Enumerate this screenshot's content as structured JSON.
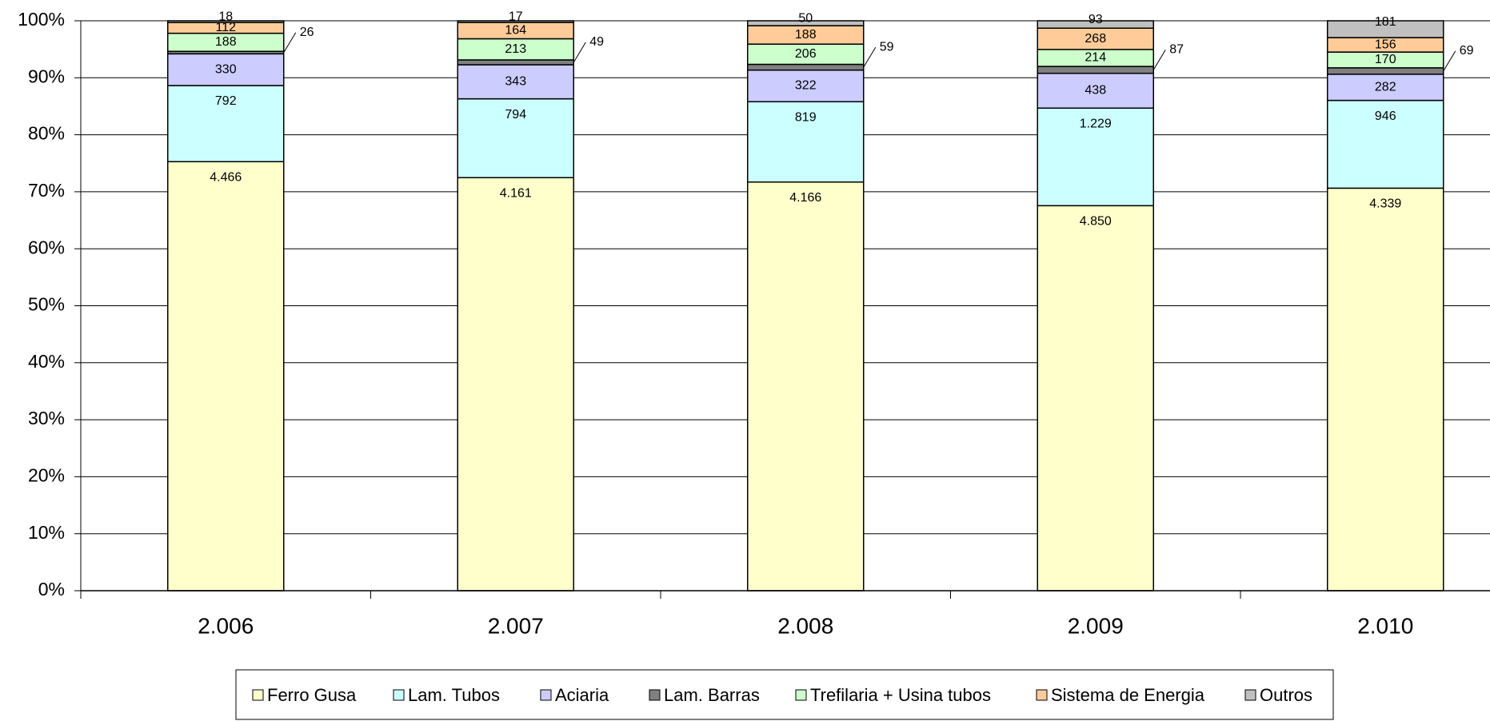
{
  "chart_data": {
    "type": "bar",
    "stacked": "percent",
    "categories": [
      "2.006",
      "2.007",
      "2.008",
      "2.009",
      "2.010"
    ],
    "series": [
      {
        "name": "Ferro Gusa",
        "color": "#ffffcc",
        "values": [
          4466,
          4161,
          4166,
          4850,
          4339
        ],
        "value_labels": [
          "4.466",
          "4.161",
          "4.166",
          "4.850",
          "4.339"
        ]
      },
      {
        "name": "Lam. Tubos",
        "color": "#ccffff",
        "values": [
          792,
          794,
          819,
          1229,
          946
        ],
        "value_labels": [
          "792",
          "794",
          "819",
          "1.229",
          "946"
        ]
      },
      {
        "name": "Aciaria",
        "color": "#ccccff",
        "values": [
          330,
          343,
          322,
          438,
          282
        ]
      },
      {
        "name": "Lam. Barras",
        "color": "#808080",
        "values": [
          26,
          49,
          59,
          87,
          69
        ]
      },
      {
        "name": "Trefilaria + Usina tubos",
        "color": "#ccffcc",
        "values": [
          188,
          213,
          206,
          214,
          170
        ]
      },
      {
        "name": "Sistema de Energia",
        "color": "#ffcc99",
        "values": [
          112,
          164,
          188,
          268,
          156
        ]
      },
      {
        "name": "Outros",
        "color": "#c0c0c0",
        "values": [
          18,
          17,
          50,
          93,
          181
        ]
      }
    ],
    "ylim": [
      0,
      100
    ],
    "yticks": [
      {
        "value": 0,
        "label": "0%"
      },
      {
        "value": 10,
        "label": "10%"
      },
      {
        "value": 20,
        "label": "20%"
      },
      {
        "value": 30,
        "label": "30%"
      },
      {
        "value": 40,
        "label": "40%"
      },
      {
        "value": 50,
        "label": "50%"
      },
      {
        "value": 60,
        "label": "60%"
      },
      {
        "value": 70,
        "label": "70%"
      },
      {
        "value": 80,
        "label": "80%"
      },
      {
        "value": 90,
        "label": "90%"
      },
      {
        "value": 100,
        "label": "100%"
      }
    ],
    "grid": true,
    "legend": "bottom"
  }
}
